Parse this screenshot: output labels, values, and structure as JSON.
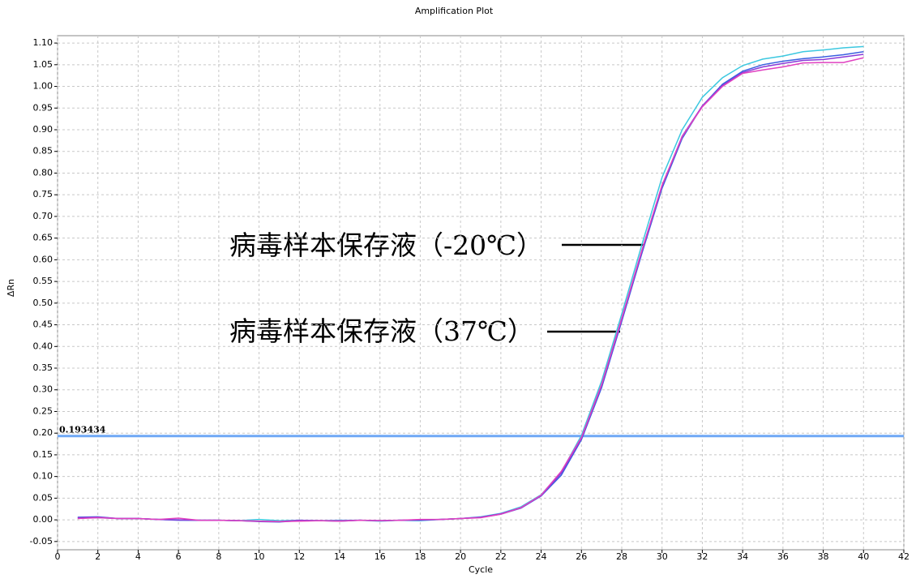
{
  "chart_data": {
    "type": "line",
    "title": "Amplification Plot",
    "x_label": "Cycle",
    "y_label": "ΔRn",
    "x": [
      1,
      2,
      3,
      4,
      5,
      6,
      7,
      8,
      9,
      10,
      11,
      12,
      13,
      14,
      15,
      16,
      17,
      18,
      19,
      20,
      21,
      22,
      23,
      24,
      25,
      26,
      27,
      28,
      29,
      30,
      31,
      32,
      33,
      34,
      35,
      36,
      37,
      38,
      39,
      40
    ],
    "series": [
      {
        "color": "#3cc8e0",
        "values": [
          0.004,
          0.005,
          0.003,
          0.003,
          0.001,
          0.0,
          -0.001,
          -0.001,
          -0.002,
          0.001,
          -0.002,
          -0.001,
          -0.002,
          -0.001,
          -0.001,
          -0.003,
          -0.001,
          -0.002,
          0.001,
          0.003,
          0.007,
          0.015,
          0.03,
          0.058,
          0.11,
          0.195,
          0.32,
          0.475,
          0.635,
          0.79,
          0.9,
          0.975,
          1.02,
          1.048,
          1.063,
          1.07,
          1.08,
          1.084,
          1.089,
          1.092
        ]
      },
      {
        "color": "#3b5fe0",
        "values": [
          0.006,
          0.007,
          0.003,
          0.003,
          0.001,
          -0.001,
          -0.001,
          -0.001,
          -0.002,
          -0.004,
          -0.005,
          -0.002,
          -0.002,
          -0.003,
          -0.001,
          -0.002,
          -0.001,
          -0.001,
          0.001,
          0.003,
          0.006,
          0.013,
          0.027,
          0.055,
          0.103,
          0.185,
          0.305,
          0.458,
          0.615,
          0.765,
          0.88,
          0.955,
          1.005,
          1.035,
          1.05,
          1.058,
          1.064,
          1.068,
          1.073,
          1.08
        ]
      },
      {
        "color": "#8a3ad8",
        "values": [
          0.005,
          0.006,
          0.003,
          0.003,
          0.001,
          0.0,
          -0.001,
          -0.001,
          -0.002,
          -0.003,
          -0.004,
          -0.001,
          -0.002,
          -0.002,
          -0.001,
          -0.002,
          -0.001,
          0.0,
          0.001,
          0.003,
          0.006,
          0.014,
          0.028,
          0.056,
          0.108,
          0.188,
          0.31,
          0.462,
          0.62,
          0.77,
          0.885,
          0.955,
          1.002,
          1.032,
          1.045,
          1.053,
          1.06,
          1.062,
          1.068,
          1.074
        ]
      },
      {
        "color": "#e040c0",
        "values": [
          0.003,
          0.005,
          0.003,
          0.003,
          0.001,
          0.004,
          -0.001,
          -0.001,
          -0.002,
          -0.003,
          -0.004,
          -0.003,
          -0.002,
          -0.003,
          -0.001,
          -0.002,
          -0.001,
          0.001,
          0.001,
          0.003,
          0.005,
          0.013,
          0.028,
          0.057,
          0.112,
          0.19,
          0.312,
          0.465,
          0.622,
          0.772,
          0.884,
          0.953,
          1.0,
          1.03,
          1.038,
          1.045,
          1.054,
          1.055,
          1.055,
          1.066
        ]
      }
    ],
    "threshold": 0.193434,
    "threshold_color": "#6fa8f5",
    "threshold_label_color": "#e00000",
    "xlim": [
      0,
      42
    ],
    "xticks": [
      0,
      2,
      4,
      6,
      8,
      10,
      12,
      14,
      16,
      18,
      20,
      22,
      24,
      26,
      28,
      30,
      32,
      34,
      36,
      38,
      40,
      42
    ],
    "ylim": [
      -0.069,
      1.117
    ],
    "yticks": [
      -0.05,
      {
        "value": 0,
        "label": "0.00"
      },
      0.05,
      {
        "value": 0.1,
        "label": "0.10"
      },
      0.15,
      {
        "value": 0.2,
        "label": "0.20"
      },
      0.25,
      {
        "value": 0.3,
        "label": "0.30"
      },
      0.35,
      {
        "value": 0.4,
        "label": "0.40"
      },
      0.45,
      {
        "value": 0.5,
        "label": "0.50"
      },
      0.55,
      {
        "value": 0.6,
        "label": "0.60"
      },
      0.65,
      {
        "value": 0.7,
        "label": "0.70"
      },
      0.75,
      {
        "value": 0.8,
        "label": "0.80"
      },
      0.85,
      {
        "value": 0.9,
        "label": "0.90"
      },
      0.95,
      {
        "value": 1,
        "label": "1.00"
      },
      1.05,
      {
        "value": 1.1,
        "label": "1.10"
      }
    ],
    "grid": true,
    "annotations": [
      "病毒样本保存液（-20℃）",
      "病毒样本保存液（37℃）"
    ]
  }
}
